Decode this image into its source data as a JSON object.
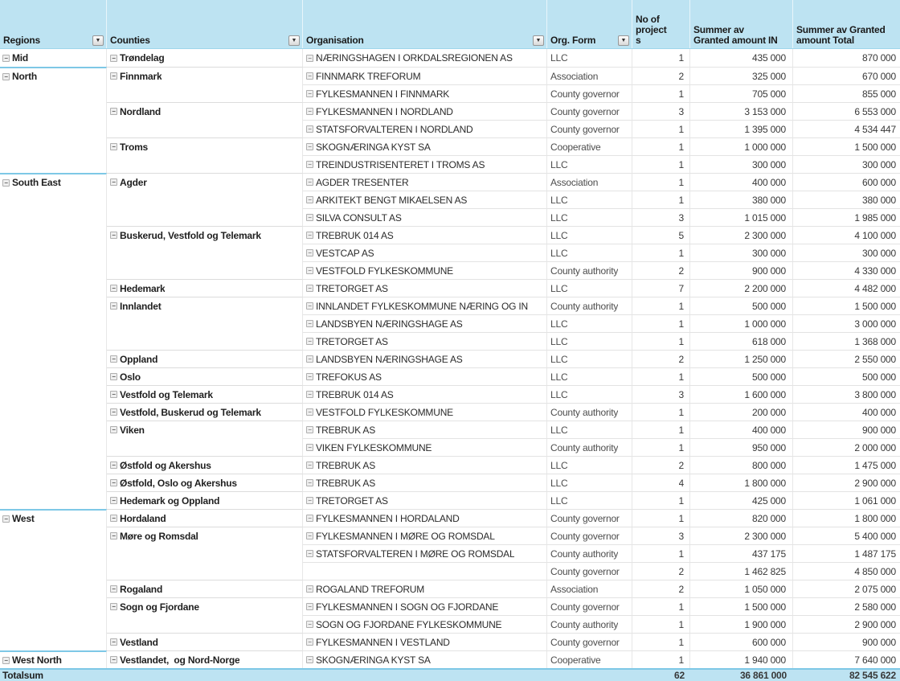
{
  "icons": {
    "collapse": "−",
    "filter": "▼"
  },
  "colors": {
    "header_bg": "#BDE3F2",
    "total_bg": "#BDE3F2",
    "group_line": "#7EC8E6",
    "row_line": "#E3E3E3"
  },
  "columns": {
    "regions": "Regions",
    "counties": "Counties",
    "organisation": "Organisation",
    "org_form": "Org. Form",
    "projects": "No of\nproject\ns",
    "granted_in": "Summer av\nGranted amount IN",
    "granted_total": "Summer av Granted\namount Total"
  },
  "table": {
    "rows": [
      {
        "region": "Mid",
        "county": "Trøndelag",
        "org": "NÆRINGSHAGEN I ORKDALSREGIONEN AS",
        "form": "LLC",
        "projects": "1",
        "granted_in": "435 000",
        "granted_total": "870 000",
        "new_region": false,
        "new_county": false
      },
      {
        "region": "North",
        "county": "Finnmark",
        "org": "FINNMARK TREFORUM",
        "form": "Association",
        "projects": "2",
        "granted_in": "325 000",
        "granted_total": "670 000",
        "new_region": true,
        "new_county": true
      },
      {
        "region": "",
        "county": "",
        "org": "FYLKESMANNEN I FINNMARK",
        "form": "County governor",
        "projects": "1",
        "granted_in": "705 000",
        "granted_total": "855 000",
        "new_region": false,
        "new_county": false
      },
      {
        "region": "",
        "county": "Nordland",
        "org": "FYLKESMANNEN I NORDLAND",
        "form": "County governor",
        "projects": "3",
        "granted_in": "3 153 000",
        "granted_total": "6 553 000",
        "new_region": false,
        "new_county": true
      },
      {
        "region": "",
        "county": "",
        "org": "STATSFORVALTEREN I NORDLAND",
        "form": "County governor",
        "projects": "1",
        "granted_in": "1 395 000",
        "granted_total": "4 534 447",
        "new_region": false,
        "new_county": false
      },
      {
        "region": "",
        "county": "Troms",
        "org": "SKOGNÆRINGA KYST SA",
        "form": "Cooperative",
        "projects": "1",
        "granted_in": "1 000 000",
        "granted_total": "1 500 000",
        "new_region": false,
        "new_county": true
      },
      {
        "region": "",
        "county": "",
        "org": "TREINDUSTRISENTERET I TROMS AS",
        "form": "LLC",
        "projects": "1",
        "granted_in": "300 000",
        "granted_total": "300 000",
        "new_region": false,
        "new_county": false
      },
      {
        "region": "South East",
        "county": "Agder",
        "org": "AGDER TRESENTER",
        "form": "Association",
        "projects": "1",
        "granted_in": "400 000",
        "granted_total": "600 000",
        "new_region": true,
        "new_county": true
      },
      {
        "region": "",
        "county": "",
        "org": "ARKITEKT BENGT MIKAELSEN AS",
        "form": "LLC",
        "projects": "1",
        "granted_in": "380 000",
        "granted_total": "380 000",
        "new_region": false,
        "new_county": false
      },
      {
        "region": "",
        "county": "",
        "org": "SILVA CONSULT AS",
        "form": "LLC",
        "projects": "3",
        "granted_in": "1 015 000",
        "granted_total": "1 985 000",
        "new_region": false,
        "new_county": false
      },
      {
        "region": "",
        "county": "Buskerud, Vestfold og Telemark",
        "org": "TREBRUK 014 AS",
        "form": "LLC",
        "projects": "5",
        "granted_in": "2 300 000",
        "granted_total": "4 100 000",
        "new_region": false,
        "new_county": true
      },
      {
        "region": "",
        "county": "",
        "org": "VESTCAP AS",
        "form": "LLC",
        "projects": "1",
        "granted_in": "300 000",
        "granted_total": "300 000",
        "new_region": false,
        "new_county": false
      },
      {
        "region": "",
        "county": "",
        "org": "VESTFOLD FYLKESKOMMUNE",
        "form": "County authority",
        "projects": "2",
        "granted_in": "900 000",
        "granted_total": "4 330 000",
        "new_region": false,
        "new_county": false
      },
      {
        "region": "",
        "county": "Hedemark",
        "org": "TRETORGET AS",
        "form": "LLC",
        "projects": "7",
        "granted_in": "2 200 000",
        "granted_total": "4 482 000",
        "new_region": false,
        "new_county": true
      },
      {
        "region": "",
        "county": "Innlandet",
        "org": "INNLANDET FYLKESKOMMUNE NÆRING OG IN",
        "form": "County authority",
        "projects": "1",
        "granted_in": "500 000",
        "granted_total": "1 500 000",
        "new_region": false,
        "new_county": true
      },
      {
        "region": "",
        "county": "",
        "org": "LANDSBYEN NÆRINGSHAGE AS",
        "form": "LLC",
        "projects": "1",
        "granted_in": "1 000 000",
        "granted_total": "3 000 000",
        "new_region": false,
        "new_county": false
      },
      {
        "region": "",
        "county": "",
        "org": "TRETORGET AS",
        "form": "LLC",
        "projects": "1",
        "granted_in": "618 000",
        "granted_total": "1 368 000",
        "new_region": false,
        "new_county": false
      },
      {
        "region": "",
        "county": "Oppland",
        "org": "LANDSBYEN NÆRINGSHAGE AS",
        "form": "LLC",
        "projects": "2",
        "granted_in": "1 250 000",
        "granted_total": "2 550 000",
        "new_region": false,
        "new_county": true
      },
      {
        "region": "",
        "county": "Oslo",
        "org": "TREFOKUS AS",
        "form": "LLC",
        "projects": "1",
        "granted_in": "500 000",
        "granted_total": "500 000",
        "new_region": false,
        "new_county": true
      },
      {
        "region": "",
        "county": "Vestfold og Telemark",
        "org": "TREBRUK 014 AS",
        "form": "LLC",
        "projects": "3",
        "granted_in": "1 600 000",
        "granted_total": "3 800 000",
        "new_region": false,
        "new_county": true
      },
      {
        "region": "",
        "county": "Vestfold, Buskerud og Telemark",
        "org": "VESTFOLD FYLKESKOMMUNE",
        "form": "County authority",
        "projects": "1",
        "granted_in": "200 000",
        "granted_total": "400 000",
        "new_region": false,
        "new_county": true
      },
      {
        "region": "",
        "county": "Viken",
        "org": "TREBRUK AS",
        "form": "LLC",
        "projects": "1",
        "granted_in": "400 000",
        "granted_total": "900 000",
        "new_region": false,
        "new_county": true
      },
      {
        "region": "",
        "county": "",
        "org": "VIKEN FYLKESKOMMUNE",
        "form": "County authority",
        "projects": "1",
        "granted_in": "950 000",
        "granted_total": "2 000 000",
        "new_region": false,
        "new_county": false
      },
      {
        "region": "",
        "county": "Østfold og Akershus",
        "org": "TREBRUK AS",
        "form": "LLC",
        "projects": "2",
        "granted_in": "800 000",
        "granted_total": "1 475 000",
        "new_region": false,
        "new_county": true
      },
      {
        "region": "",
        "county": "Østfold, Oslo og Akershus",
        "org": "TREBRUK AS",
        "form": "LLC",
        "projects": "4",
        "granted_in": "1 800 000",
        "granted_total": "2 900 000",
        "new_region": false,
        "new_county": true
      },
      {
        "region": "",
        "county": "Hedemark og Oppland",
        "org": "TRETORGET AS",
        "form": "LLC",
        "projects": "1",
        "granted_in": "425 000",
        "granted_total": "1 061 000",
        "new_region": false,
        "new_county": true
      },
      {
        "region": "West",
        "county": "Hordaland",
        "org": "FYLKESMANNEN I HORDALAND",
        "form": "County governor",
        "projects": "1",
        "granted_in": "820 000",
        "granted_total": "1 800 000",
        "new_region": true,
        "new_county": true
      },
      {
        "region": "",
        "county": "Møre og Romsdal",
        "org": "FYLKESMANNEN I MØRE OG ROMSDAL",
        "form": "County governor",
        "projects": "3",
        "granted_in": "2 300 000",
        "granted_total": "5 400 000",
        "new_region": false,
        "new_county": true
      },
      {
        "region": "",
        "county": "",
        "org": "STATSFORVALTEREN I MØRE OG ROMSDAL",
        "form": "County authority",
        "projects": "1",
        "granted_in": "437 175",
        "granted_total": "1 487 175",
        "new_region": false,
        "new_county": false
      },
      {
        "region": "",
        "county": "",
        "org": "",
        "form": "County governor",
        "projects": "2",
        "granted_in": "1 462 825",
        "granted_total": "4 850 000",
        "new_region": false,
        "new_county": false
      },
      {
        "region": "",
        "county": "Rogaland",
        "org": "ROGALAND TREFORUM",
        "form": "Association",
        "projects": "2",
        "granted_in": "1 050 000",
        "granted_total": "2 075 000",
        "new_region": false,
        "new_county": true
      },
      {
        "region": "",
        "county": "Sogn og Fjordane",
        "org": "FYLKESMANNEN I SOGN OG FJORDANE",
        "form": "County governor",
        "projects": "1",
        "granted_in": "1 500 000",
        "granted_total": "2 580 000",
        "new_region": false,
        "new_county": true
      },
      {
        "region": "",
        "county": "",
        "org": "SOGN OG FJORDANE FYLKESKOMMUNE",
        "form": "County authority",
        "projects": "1",
        "granted_in": "1 900 000",
        "granted_total": "2 900 000",
        "new_region": false,
        "new_county": false
      },
      {
        "region": "",
        "county": "Vestland",
        "org": "FYLKESMANNEN I VESTLAND",
        "form": "County governor",
        "projects": "1",
        "granted_in": "600 000",
        "granted_total": "900 000",
        "new_region": false,
        "new_county": true
      },
      {
        "region": "West North",
        "county": "Vestlandet,  og Nord-Norge",
        "org": "SKOGNÆRINGA KYST SA",
        "form": "Cooperative",
        "projects": "1",
        "granted_in": "1 940 000",
        "granted_total": "7 640 000",
        "new_region": true,
        "new_county": true
      }
    ],
    "total": {
      "label": "Totalsum",
      "projects": "62",
      "granted_in": "36 861 000",
      "granted_total": "82 545 622"
    }
  }
}
